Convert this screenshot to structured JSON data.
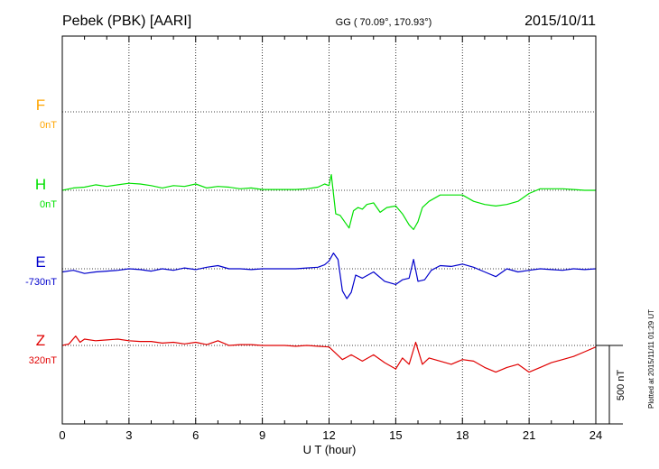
{
  "header": {
    "station": "Pebek (PBK)  [AARI]",
    "coords": "GG ( 70.09°, 170.93°)",
    "date": "2015/10/11"
  },
  "side_note": "Plotted at 2015/11/11 01:29 UT",
  "scale_bar": {
    "label": "500 nT",
    "value_nT": 500
  },
  "chart_data": {
    "type": "line",
    "xlabel": "U T (hour)",
    "xlim": [
      0,
      24
    ],
    "xticks": [
      0,
      3,
      6,
      9,
      12,
      15,
      18,
      21,
      24
    ],
    "xtick_labels": [
      "0",
      "3",
      "6",
      "9",
      "12",
      "15",
      "18",
      "21",
      "24"
    ],
    "grid": true,
    "unit": "nT",
    "series": [
      {
        "name": "F",
        "baseline_label": "0nT",
        "color": "#ffa500",
        "x": [],
        "y": []
      },
      {
        "name": "H",
        "baseline_label": "0nT",
        "color": "#00e000",
        "x": [
          0,
          0.5,
          1,
          1.5,
          2,
          2.5,
          3,
          3.5,
          4,
          4.5,
          5,
          5.5,
          6,
          6.5,
          7,
          7.5,
          8,
          8.5,
          9,
          9.5,
          10,
          10.5,
          11,
          11.5,
          11.8,
          12.0,
          12.1,
          12.3,
          12.5,
          12.7,
          12.9,
          13.1,
          13.3,
          13.5,
          13.7,
          14,
          14.3,
          14.6,
          15,
          15.3,
          15.6,
          15.8,
          16.0,
          16.2,
          16.5,
          17,
          17.5,
          18,
          18.5,
          19,
          19.5,
          20,
          20.5,
          21,
          21.5,
          22,
          22.5,
          23,
          23.5,
          24
        ],
        "y": [
          0,
          15,
          20,
          35,
          25,
          35,
          45,
          40,
          30,
          15,
          30,
          25,
          40,
          15,
          25,
          20,
          10,
          15,
          5,
          5,
          5,
          5,
          10,
          20,
          40,
          30,
          100,
          -150,
          -160,
          -200,
          -240,
          -130,
          -110,
          -120,
          -90,
          -80,
          -140,
          -110,
          -100,
          -150,
          -220,
          -250,
          -200,
          -110,
          -70,
          -30,
          -30,
          -30,
          -70,
          -90,
          -100,
          -90,
          -70,
          -20,
          10,
          10,
          10,
          5,
          0,
          0
        ]
      },
      {
        "name": "E",
        "baseline_label": "-730nT",
        "color": "#0000cc",
        "x": [
          0,
          0.5,
          1,
          1.5,
          2,
          2.5,
          3,
          3.5,
          4,
          4.5,
          5,
          5.5,
          6,
          6.5,
          7,
          7.5,
          8,
          8.5,
          9,
          9.5,
          10,
          10.5,
          11,
          11.5,
          11.8,
          12.0,
          12.2,
          12.4,
          12.6,
          12.8,
          13.0,
          13.2,
          13.5,
          14,
          14.5,
          15,
          15.3,
          15.6,
          15.8,
          16,
          16.3,
          16.6,
          17,
          17.5,
          18,
          18.5,
          19,
          19.5,
          20,
          20.5,
          21,
          21.5,
          22,
          22.5,
          23,
          23.5,
          24
        ],
        "y": [
          -20,
          -10,
          -30,
          -20,
          -15,
          -10,
          0,
          -5,
          -15,
          0,
          -10,
          5,
          -5,
          10,
          20,
          0,
          0,
          -5,
          0,
          0,
          0,
          0,
          5,
          10,
          25,
          50,
          100,
          60,
          -140,
          -190,
          -150,
          -40,
          -60,
          -20,
          -80,
          -100,
          -70,
          -60,
          60,
          -80,
          -70,
          -10,
          20,
          15,
          30,
          10,
          -20,
          -50,
          0,
          -20,
          -10,
          0,
          -5,
          -10,
          0,
          -5,
          0
        ]
      },
      {
        "name": "Z",
        "baseline_label": "320nT",
        "color": "#e00000",
        "x": [
          0,
          0.3,
          0.6,
          0.8,
          1,
          1.5,
          2,
          2.5,
          3,
          3.5,
          4,
          4.5,
          5,
          5.5,
          6,
          6.5,
          7,
          7.5,
          8,
          8.5,
          9,
          9.5,
          10,
          10.5,
          11,
          11.5,
          12,
          12.3,
          12.6,
          13,
          13.5,
          14,
          14.5,
          15,
          15.3,
          15.6,
          15.9,
          16.2,
          16.5,
          17,
          17.5,
          18,
          18.5,
          19,
          19.5,
          20,
          20.5,
          21,
          21.5,
          22,
          22.5,
          23,
          23.5,
          24
        ],
        "y": [
          0,
          10,
          60,
          20,
          40,
          30,
          35,
          40,
          30,
          25,
          25,
          15,
          20,
          10,
          20,
          5,
          30,
          0,
          5,
          5,
          0,
          0,
          0,
          -5,
          0,
          -5,
          -10,
          -50,
          -90,
          -60,
          -100,
          -60,
          -110,
          -150,
          -80,
          -120,
          20,
          -120,
          -80,
          -100,
          -120,
          -90,
          -100,
          -140,
          -170,
          -140,
          -120,
          -170,
          -140,
          -110,
          -90,
          -70,
          -40,
          -10
        ]
      }
    ]
  }
}
